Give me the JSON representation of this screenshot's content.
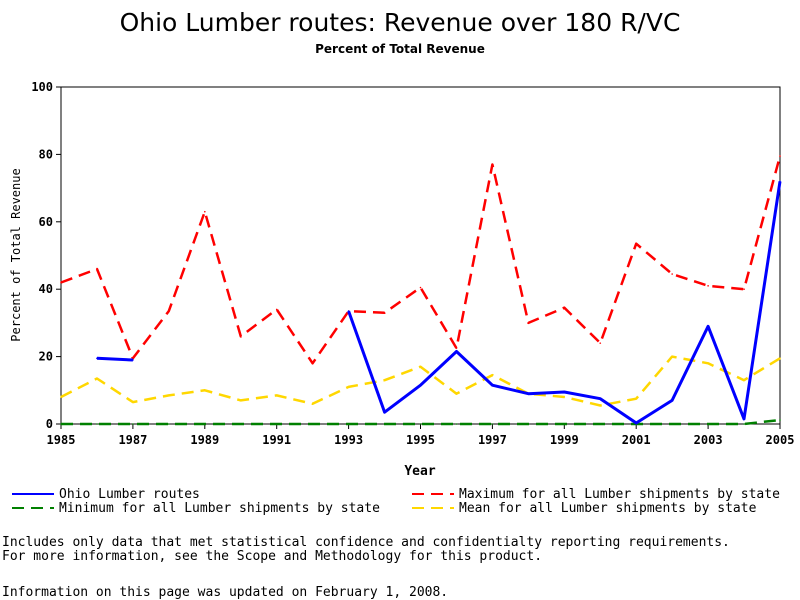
{
  "chart_data": {
    "type": "line",
    "title": "Ohio Lumber routes: Revenue over 180 R/VC",
    "subtitle": "Percent of Total Revenue",
    "xlabel": "Year",
    "ylabel": "Percent of Total Revenue",
    "xlim": [
      1985,
      2005
    ],
    "ylim": [
      0,
      100
    ],
    "xticks": [
      1985,
      1987,
      1989,
      1991,
      1993,
      1995,
      1997,
      1999,
      2001,
      2003,
      2005
    ],
    "yticks": [
      0,
      20,
      40,
      60,
      80,
      100
    ],
    "x": [
      1985,
      1986,
      1987,
      1988,
      1989,
      1990,
      1991,
      1992,
      1993,
      1994,
      1995,
      1996,
      1997,
      1998,
      1999,
      2000,
      2001,
      2002,
      2003,
      2004,
      2005
    ],
    "series": [
      {
        "name": "Ohio Lumber routes",
        "color": "#0000ff",
        "style": "solid",
        "values": [
          null,
          19.5,
          19,
          null,
          null,
          null,
          null,
          null,
          33.5,
          3.5,
          11.5,
          21.5,
          11.5,
          9,
          9.5,
          7.5,
          0.3,
          7,
          29,
          1.5,
          72
        ]
      },
      {
        "name": "Maximum for all Lumber shipments by state",
        "color": "#ff0000",
        "style": "dashed",
        "values": [
          42,
          46,
          19.5,
          33.5,
          63,
          26,
          34,
          18,
          33.5,
          33,
          40.5,
          22.5,
          77,
          30,
          34.5,
          24,
          53.5,
          44.5,
          41,
          40,
          79.5
        ]
      },
      {
        "name": "Minimum for all Lumber shipments by state",
        "color": "#008000",
        "style": "dashed",
        "values": [
          0,
          0,
          0,
          0,
          0,
          0,
          0,
          0,
          0,
          0,
          0,
          0,
          0,
          0,
          0,
          0,
          0,
          0,
          0,
          0,
          1.2
        ]
      },
      {
        "name": "Mean for all Lumber shipments by state",
        "color": "#ffd700",
        "style": "dashed",
        "values": [
          8,
          13.5,
          6.5,
          8.5,
          10,
          7,
          8.5,
          6,
          11,
          13,
          17,
          9,
          14.5,
          9,
          8,
          5.5,
          7.5,
          20,
          18,
          13,
          19.5
        ]
      }
    ],
    "legend_placement": "bottom",
    "grid": false
  },
  "footnotes": {
    "line1": "Includes only data that met statistical confidence and confidentialty reporting requirements.",
    "line2": "For more information, see the Scope and Methodology for this product.",
    "line3": "Information on this page was updated on February 1, 2008."
  }
}
